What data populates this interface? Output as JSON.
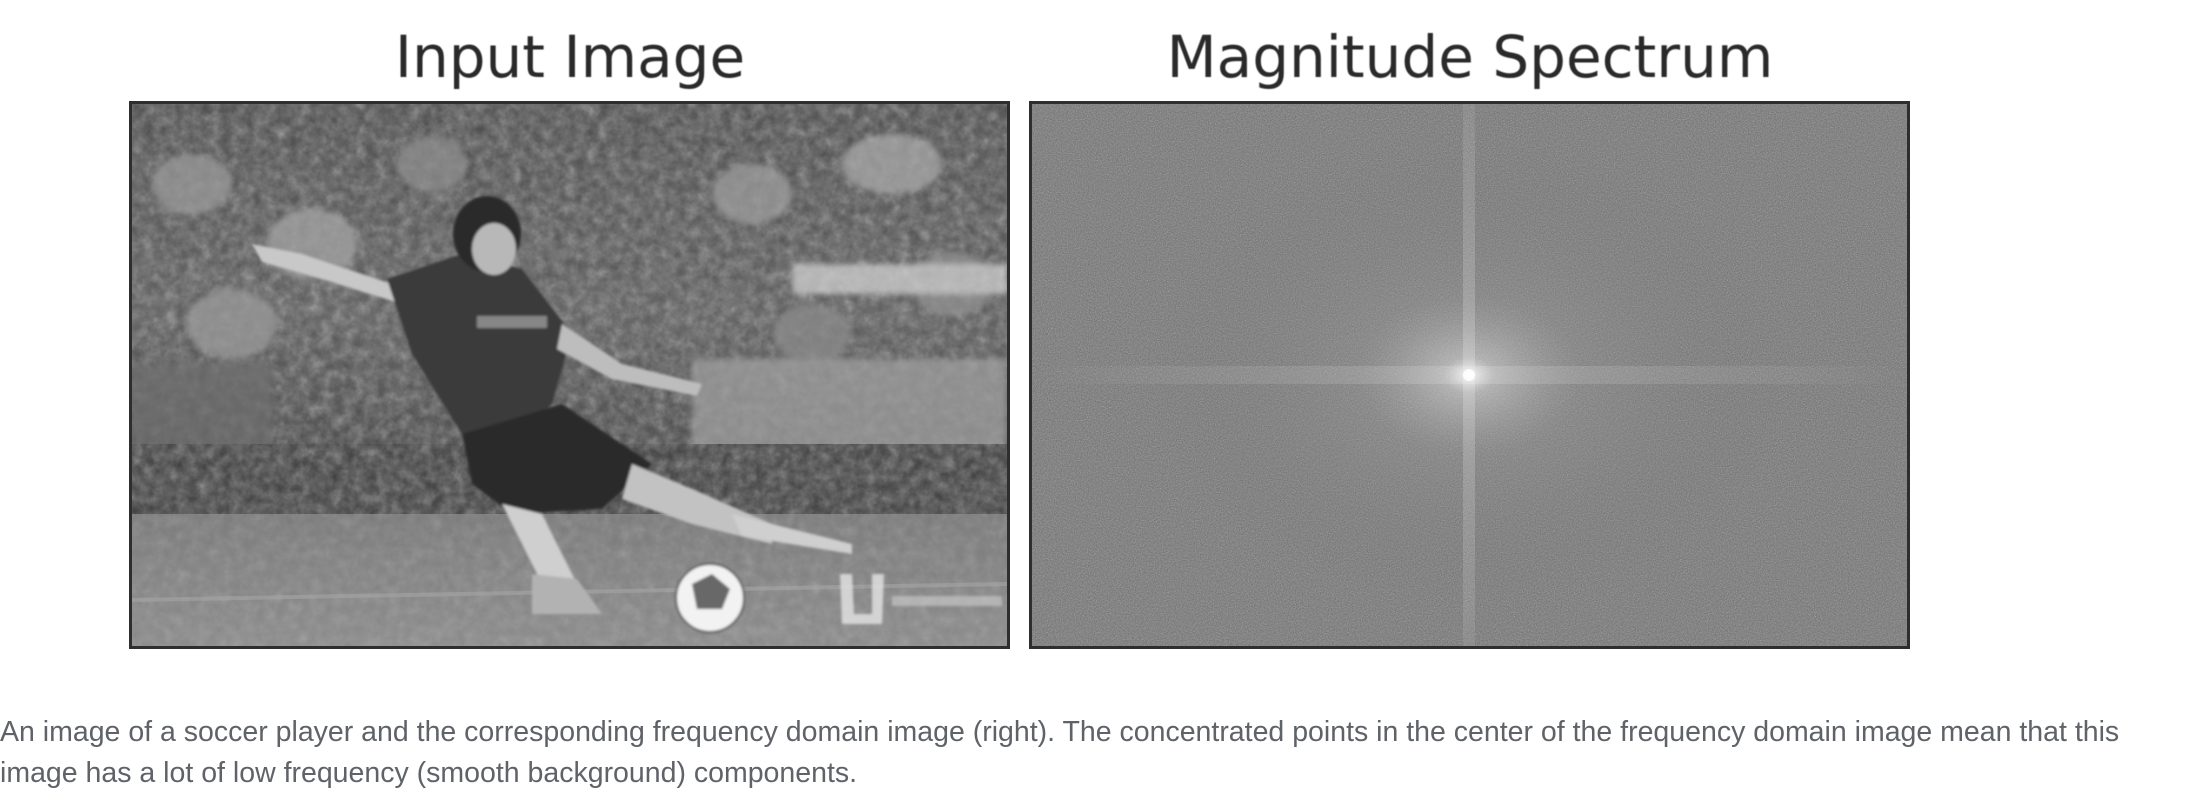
{
  "figure": {
    "left_title": "Input Image",
    "right_title": "Magnitude Spectrum",
    "left_image_icon": "soccer-player-photo",
    "right_image_icon": "frequency-spectrum-image",
    "colors": {
      "title_text": "#2a2a2a",
      "frame_border": "#2e2e2e",
      "spectrum_background": "#6b6b6b",
      "caption_text": "#5f6368"
    }
  },
  "caption": {
    "text": "An image of a soccer player and the corresponding frequency domain image (right). The concentrated points in the center of the frequency domain image mean that this image has a lot of low frequency (smooth background) components."
  }
}
